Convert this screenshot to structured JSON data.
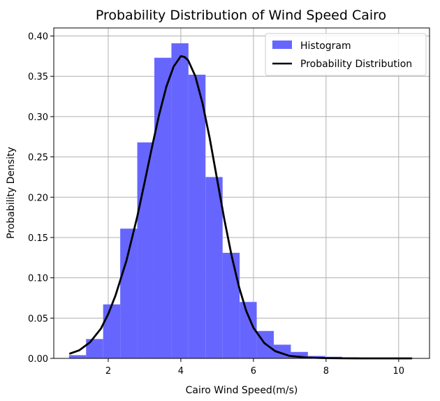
{
  "chart_data": {
    "type": "bar",
    "title": "Probability Distribution of Wind Speed Cairo",
    "xlabel": "Cairo Wind Speed(m/s)",
    "ylabel": "Probability Density",
    "xlim": [
      0.5,
      10.85
    ],
    "ylim": [
      0,
      0.41
    ],
    "xticks": [
      2,
      4,
      6,
      8,
      10
    ],
    "yticks": [
      0.0,
      0.05,
      0.1,
      0.15,
      0.2,
      0.25,
      0.3,
      0.35,
      0.4
    ],
    "ytick_labels": [
      "0.00",
      "0.05",
      "0.10",
      "0.15",
      "0.20",
      "0.25",
      "0.30",
      "0.35",
      "0.40"
    ],
    "grid": true,
    "legend": "top-right",
    "histogram": {
      "name": "Histogram",
      "color": "#6666ff",
      "bin_edges": [
        0.92,
        1.39,
        1.86,
        2.33,
        2.8,
        3.27,
        3.74,
        4.21,
        4.68,
        5.15,
        5.62,
        6.09,
        6.56,
        7.03,
        7.5,
        7.97,
        8.44,
        8.91,
        9.38,
        9.85,
        10.32
      ],
      "density": [
        0.004,
        0.024,
        0.067,
        0.161,
        0.268,
        0.373,
        0.391,
        0.352,
        0.225,
        0.131,
        0.07,
        0.034,
        0.017,
        0.008,
        0.003,
        0.002,
        0.001,
        0.0005,
        0.0003,
        0.0002
      ]
    },
    "curve": {
      "name": "Probability Distribution",
      "color": "#000000",
      "x": [
        0.95,
        1.2,
        1.5,
        1.8,
        2.0,
        2.2,
        2.5,
        2.8,
        3.0,
        3.2,
        3.4,
        3.6,
        3.8,
        4.0,
        4.1,
        4.2,
        4.4,
        4.6,
        4.8,
        5.0,
        5.2,
        5.4,
        5.6,
        5.8,
        6.0,
        6.3,
        6.6,
        7.0,
        7.5,
        8.0,
        8.5,
        9.0,
        9.5,
        10.0,
        10.35
      ],
      "y": [
        0.006,
        0.01,
        0.02,
        0.037,
        0.055,
        0.078,
        0.121,
        0.176,
        0.218,
        0.261,
        0.302,
        0.337,
        0.362,
        0.375,
        0.374,
        0.37,
        0.35,
        0.316,
        0.272,
        0.222,
        0.172,
        0.127,
        0.089,
        0.059,
        0.038,
        0.019,
        0.009,
        0.003,
        0.001,
        0.0003,
        0.0001,
        0.0,
        0.0,
        0.0,
        0.0
      ]
    }
  }
}
